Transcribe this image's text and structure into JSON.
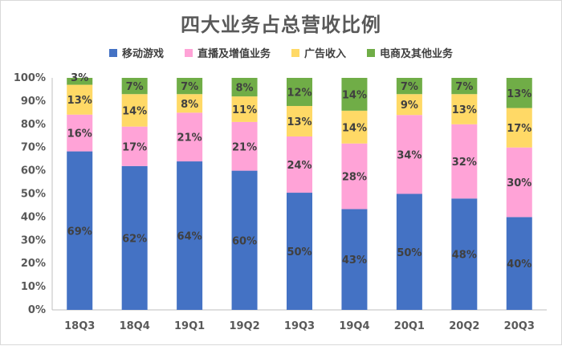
{
  "chart_data": {
    "type": "bar",
    "stacked": true,
    "title": "四大业务占总营收比例",
    "categories": [
      "18Q3",
      "18Q4",
      "19Q1",
      "19Q2",
      "19Q3",
      "19Q4",
      "20Q1",
      "20Q2",
      "20Q3"
    ],
    "series": [
      {
        "name": "移动游戏",
        "color": "#4472C4",
        "values": [
          69,
          62,
          64,
          60,
          50,
          43,
          50,
          48,
          40
        ]
      },
      {
        "name": "直播及增值业务",
        "color": "#FFA3D7",
        "values": [
          16,
          17,
          21,
          21,
          24,
          28,
          34,
          32,
          30
        ]
      },
      {
        "name": "广告收入",
        "color": "#FFD966",
        "values": [
          13,
          14,
          8,
          11,
          13,
          14,
          9,
          13,
          17
        ]
      },
      {
        "name": "电商及其他业务",
        "color": "#70AD47",
        "values": [
          3,
          7,
          7,
          8,
          12,
          14,
          7,
          7,
          13
        ]
      }
    ],
    "value_suffix": "%",
    "ylim": [
      0,
      100
    ],
    "ytick_step": 10,
    "legend_position": "top",
    "grid": false
  }
}
